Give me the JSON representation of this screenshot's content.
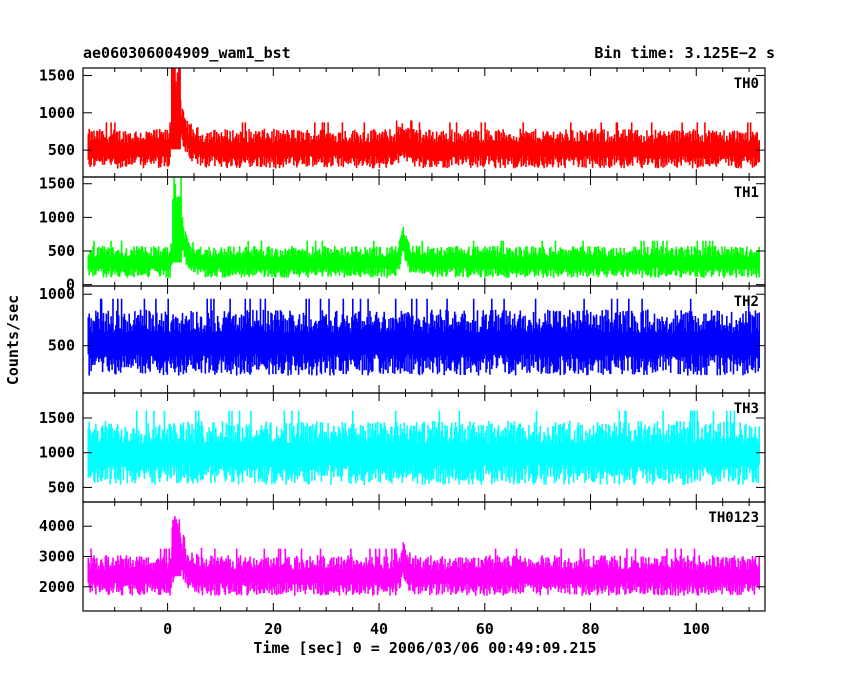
{
  "chart_data": {
    "type": "line",
    "title_left": "ae060306004909_wam1_bst",
    "title_right": "Bin time: 3.125E−2 s",
    "xlabel": "Time [sec] 0 = 2006/03/06 00:49:09.215",
    "ylabel": "Counts/sec",
    "xlim": [
      -16,
      113
    ],
    "xticks": [
      0,
      20,
      40,
      60,
      80,
      100
    ],
    "x_start": -15,
    "x_end": 112,
    "bin_time": 0.03125,
    "panels": [
      {
        "name": "TH0",
        "color": "#ff0000",
        "ylim": [
          140,
          1600
        ],
        "yticks": [
          500,
          1000,
          1500
        ],
        "baseline": 510,
        "noise": 190,
        "peak": {
          "x": 1.6,
          "height": 1300,
          "width": 1.2
        },
        "features": [
          {
            "x": 44.5,
            "height": 300,
            "width": 0.8
          }
        ]
      },
      {
        "name": "TH1",
        "color": "#00ff00",
        "ylim": [
          -20,
          1600
        ],
        "yticks": [
          0,
          500,
          1000,
          1500
        ],
        "baseline": 330,
        "noise": 170,
        "peak": {
          "x": 1.8,
          "height": 1350,
          "width": 1.2
        },
        "features": [
          {
            "x": 44.5,
            "height": 550,
            "width": 0.8
          }
        ]
      },
      {
        "name": "TH2",
        "color": "#0000ff",
        "ylim": [
          40,
          1080
        ],
        "yticks": [
          500,
          1000
        ],
        "baseline": 520,
        "noise": 230,
        "peak": null,
        "features": []
      },
      {
        "name": "TH3",
        "color": "#00ffff",
        "ylim": [
          290,
          1860
        ],
        "yticks": [
          500,
          1000,
          1500
        ],
        "baseline": 980,
        "noise": 330,
        "peak": null,
        "features": []
      },
      {
        "name": "TH0123",
        "color": "#ff00ff",
        "ylim": [
          1200,
          4800
        ],
        "yticks": [
          2000,
          3000,
          4000
        ],
        "baseline": 2350,
        "noise": 480,
        "peak": {
          "x": 1.7,
          "height": 2200,
          "width": 1.2
        },
        "features": [
          {
            "x": 44.5,
            "height": 900,
            "width": 0.8
          }
        ]
      }
    ]
  }
}
